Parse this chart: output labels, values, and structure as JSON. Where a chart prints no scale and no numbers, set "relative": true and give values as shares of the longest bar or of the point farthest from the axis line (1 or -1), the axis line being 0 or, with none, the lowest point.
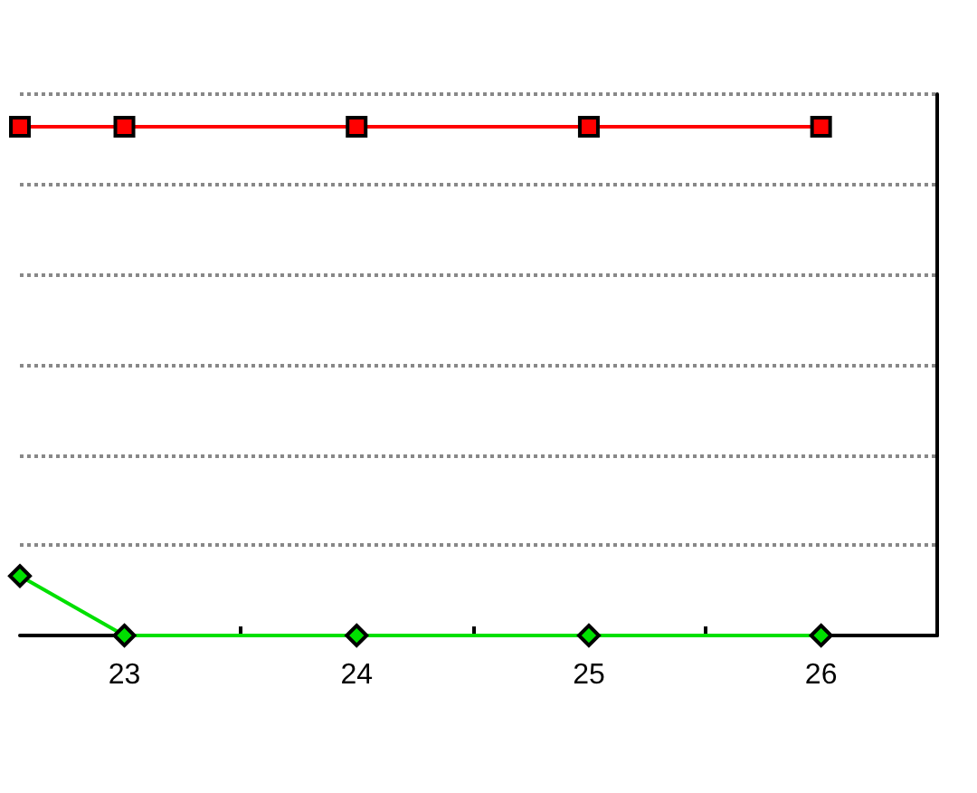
{
  "chart_data": {
    "type": "line",
    "relative": true,
    "x": [
      22.55,
      23,
      24,
      25,
      26
    ],
    "xlim": [
      22.55,
      26.5
    ],
    "xticks": [
      23,
      {
        "value": 23.5,
        "label": null
      },
      24,
      {
        "value": 24.5,
        "label": null
      },
      25,
      {
        "value": 25.5,
        "label": null
      },
      26
    ],
    "series": [
      {
        "color": "#ff0000",
        "marker": "square",
        "values": [
          1,
          1,
          1,
          1,
          1
        ]
      },
      {
        "color": "#00e000",
        "marker": "diamond",
        "values": [
          0.117,
          0,
          0,
          0,
          0
        ]
      }
    ],
    "grid": "y",
    "line_style": "solid"
  }
}
